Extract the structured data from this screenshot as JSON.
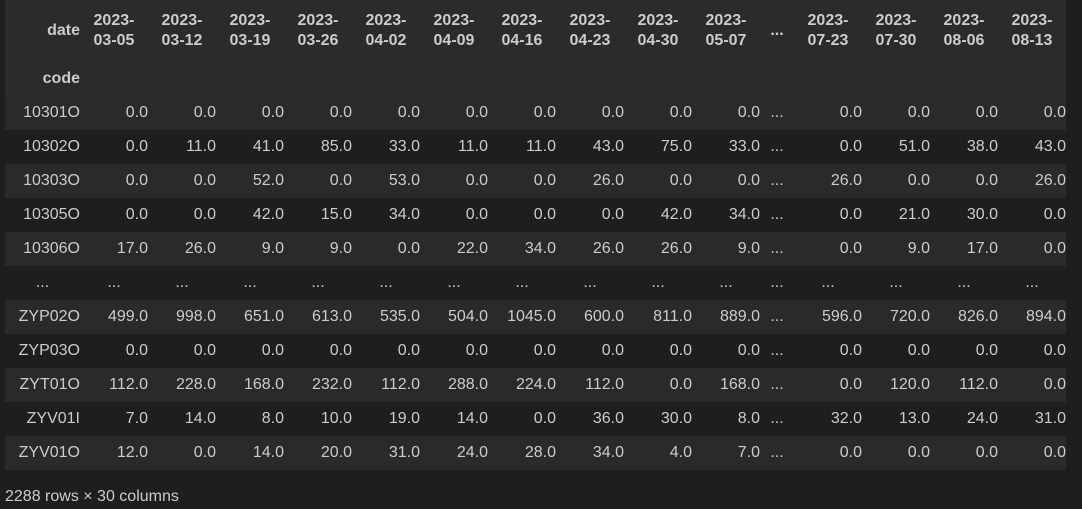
{
  "table": {
    "index_name_top": "date",
    "index_name_bottom": "code",
    "columns": [
      [
        "2023-",
        "03-05"
      ],
      [
        "2023-",
        "03-12"
      ],
      [
        "2023-",
        "03-19"
      ],
      [
        "2023-",
        "03-26"
      ],
      [
        "2023-",
        "04-02"
      ],
      [
        "2023-",
        "04-09"
      ],
      [
        "2023-",
        "04-16"
      ],
      [
        "2023-",
        "04-23"
      ],
      [
        "2023-",
        "04-30"
      ],
      [
        "2023-",
        "05-07"
      ],
      [
        "...",
        ""
      ],
      [
        "2023-",
        "07-23"
      ],
      [
        "2023-",
        "07-30"
      ],
      [
        "2023-",
        "08-06"
      ],
      [
        "2023-",
        "08-13"
      ]
    ],
    "rows": [
      [
        "10301O",
        "0.0",
        "0.0",
        "0.0",
        "0.0",
        "0.0",
        "0.0",
        "0.0",
        "0.0",
        "0.0",
        "0.0",
        "...",
        "0.0",
        "0.0",
        "0.0",
        "0.0"
      ],
      [
        "10302O",
        "0.0",
        "11.0",
        "41.0",
        "85.0",
        "33.0",
        "11.0",
        "11.0",
        "43.0",
        "75.0",
        "33.0",
        "...",
        "0.0",
        "51.0",
        "38.0",
        "43.0"
      ],
      [
        "10303O",
        "0.0",
        "0.0",
        "52.0",
        "0.0",
        "53.0",
        "0.0",
        "0.0",
        "26.0",
        "0.0",
        "0.0",
        "...",
        "26.0",
        "0.0",
        "0.0",
        "26.0"
      ],
      [
        "10305O",
        "0.0",
        "0.0",
        "42.0",
        "15.0",
        "34.0",
        "0.0",
        "0.0",
        "0.0",
        "42.0",
        "34.0",
        "...",
        "0.0",
        "21.0",
        "30.0",
        "0.0"
      ],
      [
        "10306O",
        "17.0",
        "26.0",
        "9.0",
        "9.0",
        "0.0",
        "22.0",
        "34.0",
        "26.0",
        "26.0",
        "9.0",
        "...",
        "0.0",
        "9.0",
        "17.0",
        "0.0"
      ],
      [
        "...",
        "...",
        "...",
        "...",
        "...",
        "...",
        "...",
        "...",
        "...",
        "...",
        "...",
        "...",
        "...",
        "...",
        "...",
        "..."
      ],
      [
        "ZYP02O",
        "499.0",
        "998.0",
        "651.0",
        "613.0",
        "535.0",
        "504.0",
        "1045.0",
        "600.0",
        "811.0",
        "889.0",
        "...",
        "596.0",
        "720.0",
        "826.0",
        "894.0"
      ],
      [
        "ZYP03O",
        "0.0",
        "0.0",
        "0.0",
        "0.0",
        "0.0",
        "0.0",
        "0.0",
        "0.0",
        "0.0",
        "0.0",
        "...",
        "0.0",
        "0.0",
        "0.0",
        "0.0"
      ],
      [
        "ZYT01O",
        "112.0",
        "228.0",
        "168.0",
        "232.0",
        "112.0",
        "288.0",
        "224.0",
        "112.0",
        "0.0",
        "168.0",
        "...",
        "0.0",
        "120.0",
        "112.0",
        "0.0"
      ],
      [
        "ZYV01I",
        "7.0",
        "14.0",
        "8.0",
        "10.0",
        "19.0",
        "14.0",
        "0.0",
        "36.0",
        "30.0",
        "8.0",
        "...",
        "32.0",
        "13.0",
        "24.0",
        "31.0"
      ],
      [
        "ZYV01O",
        "12.0",
        "0.0",
        "14.0",
        "20.0",
        "31.0",
        "24.0",
        "28.0",
        "34.0",
        "4.0",
        "7.0",
        "...",
        "0.0",
        "0.0",
        "0.0",
        "0.0"
      ]
    ],
    "footer": "2288 rows × 30 columns"
  }
}
